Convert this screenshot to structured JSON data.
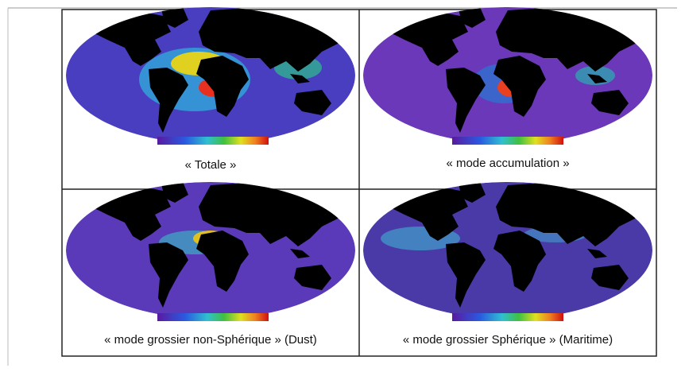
{
  "panels": [
    {
      "caption": "« Totale »"
    },
    {
      "caption": "« mode accumulation »"
    },
    {
      "caption": "« mode grossier non-Sphérique » (Dust)"
    },
    {
      "caption": "« mode grossier Sphérique » (Maritime)"
    }
  ]
}
